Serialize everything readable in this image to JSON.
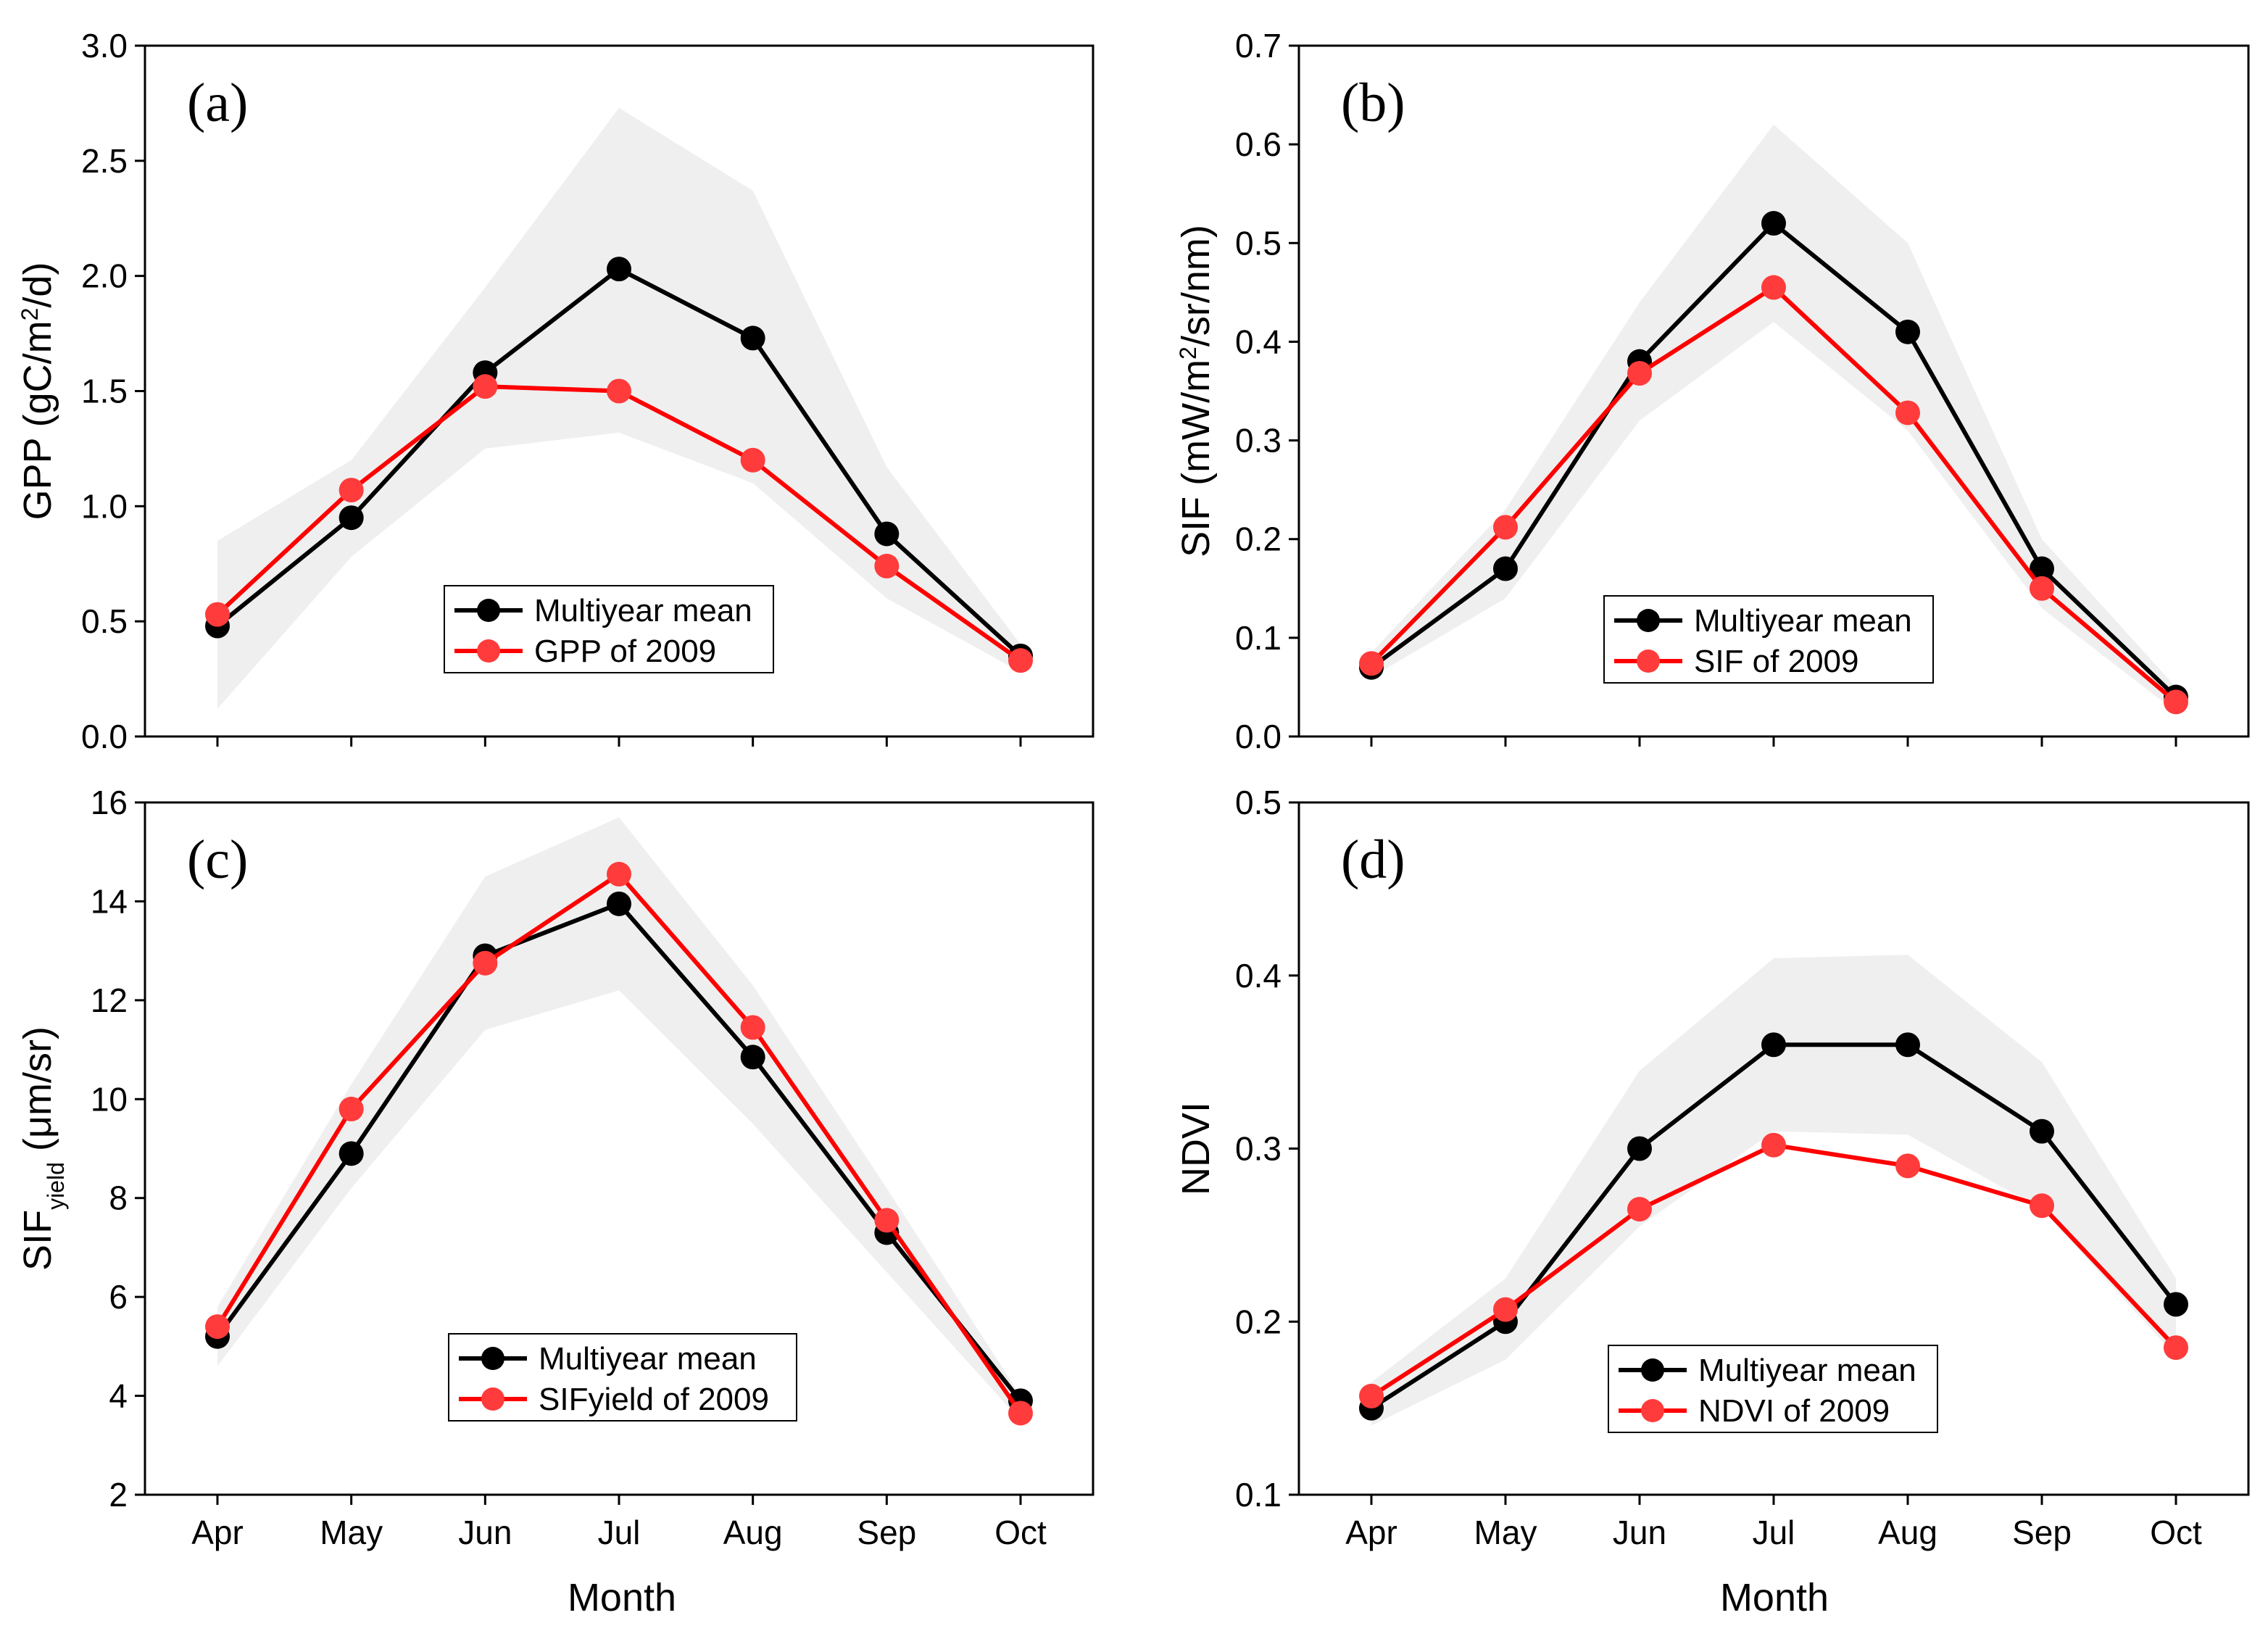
{
  "figure": {
    "x_title": "Month"
  },
  "chart_data": [
    {
      "type": "line",
      "panel_label": "(a)",
      "ylabel": "GPP (gC/m²/d)",
      "ylabel_parts": {
        "main": "GPP (gC/m",
        "sup": "2",
        "tail": "/d)"
      },
      "categories": [
        "Apr",
        "May",
        "Jun",
        "Jul",
        "Aug",
        "Sep",
        "Oct"
      ],
      "ylim": [
        0.0,
        3.0
      ],
      "yticks": [
        0.0,
        0.5,
        1.0,
        1.5,
        2.0,
        2.5,
        3.0
      ],
      "ytick_labels": [
        "0.0",
        "0.5",
        "1.0",
        "1.5",
        "2.0",
        "2.5",
        "3.0"
      ],
      "band": {
        "upper": [
          0.85,
          1.2,
          1.95,
          2.73,
          2.37,
          1.17,
          0.4
        ],
        "lower": [
          0.12,
          0.78,
          1.25,
          1.32,
          1.1,
          0.6,
          0.28
        ]
      },
      "series": [
        {
          "name": "Multiyear mean",
          "color": "#000000",
          "values": [
            0.48,
            0.95,
            1.58,
            2.03,
            1.73,
            0.88,
            0.35
          ]
        },
        {
          "name": "GPP of 2009",
          "color": "#ff0000",
          "values": [
            0.53,
            1.07,
            1.52,
            1.5,
            1.2,
            0.74,
            0.33
          ]
        }
      ],
      "legend": [
        "Multiyear mean",
        "GPP of 2009"
      ]
    },
    {
      "type": "line",
      "panel_label": "(b)",
      "ylabel": "SIF (mW/m²/sr/nm)",
      "ylabel_parts": {
        "main": "SIF (mW/m",
        "sup": "2",
        "tail": "/sr/nm)"
      },
      "categories": [
        "Apr",
        "May",
        "Jun",
        "Jul",
        "Aug",
        "Sep",
        "Oct"
      ],
      "ylim": [
        0.0,
        0.7
      ],
      "yticks": [
        0.0,
        0.1,
        0.2,
        0.3,
        0.4,
        0.5,
        0.6,
        0.7
      ],
      "ytick_labels": [
        "0.0",
        "0.1",
        "0.2",
        "0.3",
        "0.4",
        "0.5",
        "0.6",
        "0.7"
      ],
      "band": {
        "upper": [
          0.085,
          0.23,
          0.44,
          0.62,
          0.5,
          0.2,
          0.05
        ],
        "lower": [
          0.06,
          0.14,
          0.32,
          0.42,
          0.31,
          0.13,
          0.025
        ]
      },
      "series": [
        {
          "name": "Multiyear mean",
          "color": "#000000",
          "values": [
            0.07,
            0.17,
            0.38,
            0.52,
            0.41,
            0.17,
            0.04
          ]
        },
        {
          "name": "SIF of 2009",
          "color": "#ff0000",
          "values": [
            0.074,
            0.212,
            0.368,
            0.455,
            0.328,
            0.15,
            0.035
          ]
        }
      ],
      "legend": [
        "Multiyear mean",
        "SIF of 2009"
      ]
    },
    {
      "type": "line",
      "panel_label": "(c)",
      "ylabel": "SIFyield (μm/sr)",
      "ylabel_parts": {
        "main": "SIF",
        "sub": "yield",
        "tail": " (μm/sr)"
      },
      "categories": [
        "Apr",
        "May",
        "Jun",
        "Jul",
        "Aug",
        "Sep",
        "Oct"
      ],
      "ylim": [
        2,
        16
      ],
      "yticks": [
        2,
        4,
        6,
        8,
        10,
        12,
        14,
        16
      ],
      "ytick_labels": [
        "2",
        "4",
        "6",
        "8",
        "10",
        "12",
        "14",
        "16"
      ],
      "band": {
        "upper": [
          5.8,
          10.3,
          14.5,
          15.7,
          12.3,
          8.2,
          4.0
        ],
        "lower": [
          4.6,
          8.2,
          11.4,
          12.2,
          9.5,
          6.5,
          3.5
        ]
      },
      "series": [
        {
          "name": "Multiyear mean",
          "color": "#000000",
          "values": [
            5.2,
            8.9,
            12.9,
            13.95,
            10.85,
            7.3,
            3.9
          ]
        },
        {
          "name": "SIFyield of 2009",
          "color": "#ff0000",
          "values": [
            5.4,
            9.8,
            12.75,
            14.55,
            11.45,
            7.55,
            3.65
          ]
        }
      ],
      "legend": [
        "Multiyear mean",
        "SIFyield of 2009"
      ]
    },
    {
      "type": "line",
      "panel_label": "(d)",
      "ylabel": "NDVI",
      "ylabel_parts": {
        "main": "NDVI"
      },
      "categories": [
        "Apr",
        "May",
        "Jun",
        "Jul",
        "Aug",
        "Sep",
        "Oct"
      ],
      "ylim": [
        0.1,
        0.5
      ],
      "yticks": [
        0.1,
        0.2,
        0.3,
        0.4,
        0.5
      ],
      "ytick_labels": [
        "0.1",
        "0.2",
        "0.3",
        "0.4",
        "0.5"
      ],
      "band": {
        "upper": [
          0.165,
          0.225,
          0.345,
          0.41,
          0.412,
          0.35,
          0.225
        ],
        "lower": [
          0.14,
          0.178,
          0.255,
          0.31,
          0.308,
          0.265,
          0.18
        ]
      },
      "series": [
        {
          "name": "Multiyear mean",
          "color": "#000000",
          "values": [
            0.15,
            0.2,
            0.3,
            0.36,
            0.36,
            0.31,
            0.21
          ]
        },
        {
          "name": "NDVI of 2009",
          "color": "#ff0000",
          "values": [
            0.157,
            0.207,
            0.265,
            0.302,
            0.29,
            0.267,
            0.185
          ]
        }
      ],
      "legend": [
        "Multiyear mean",
        "NDVI of 2009"
      ]
    }
  ]
}
